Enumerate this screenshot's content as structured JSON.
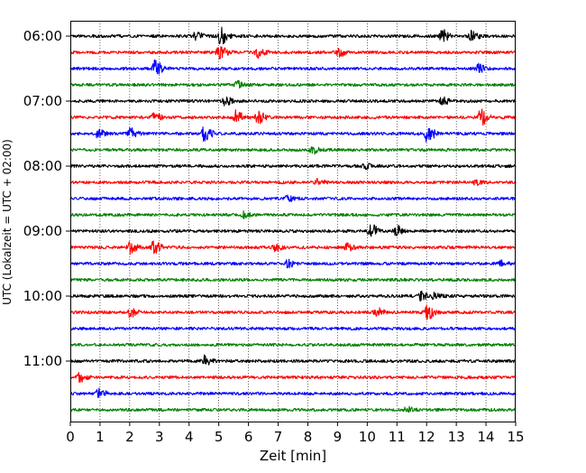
{
  "chart_data": {
    "type": "line",
    "title": "",
    "xlabel": "Zeit  [min]",
    "ylabel": "UTC (Lokalzeit = UTC + 02:00)",
    "xlim": [
      0,
      15
    ],
    "x_ticks": [
      "0",
      "1",
      "2",
      "3",
      "4",
      "5",
      "6",
      "7",
      "8",
      "9",
      "10",
      "11",
      "12",
      "13",
      "14",
      "15"
    ],
    "y_tick_labels": [
      "06:00",
      "07:00",
      "08:00",
      "09:00",
      "10:00",
      "11:00"
    ],
    "grid": "vertical dotted at each minute",
    "trace_interval_min": 15,
    "colors": [
      "#000000",
      "#ff0000",
      "#0000ff",
      "#008000"
    ],
    "traces": [
      {
        "start": "06:00",
        "color": "#000000",
        "events": [
          [
            4.2,
            0.45
          ],
          [
            5.05,
            1.0
          ],
          [
            12.5,
            0.8
          ],
          [
            13.5,
            0.6
          ]
        ]
      },
      {
        "start": "06:15",
        "color": "#ff0000",
        "events": [
          [
            5.0,
            1.0
          ],
          [
            6.3,
            0.6
          ],
          [
            9.0,
            0.5
          ]
        ]
      },
      {
        "start": "06:30",
        "color": "#0000ff",
        "events": [
          [
            2.85,
            1.0
          ],
          [
            13.7,
            0.5
          ]
        ]
      },
      {
        "start": "06:45",
        "color": "#008000",
        "events": [
          [
            5.6,
            0.4
          ]
        ]
      },
      {
        "start": "07:00",
        "color": "#000000",
        "events": [
          [
            5.2,
            0.5
          ],
          [
            12.5,
            0.4
          ]
        ]
      },
      {
        "start": "07:15",
        "color": "#ff0000",
        "events": [
          [
            2.8,
            0.5
          ],
          [
            5.55,
            0.8
          ],
          [
            6.3,
            0.7
          ],
          [
            13.8,
            1.0
          ]
        ]
      },
      {
        "start": "07:30",
        "color": "#0000ff",
        "events": [
          [
            0.9,
            0.5
          ],
          [
            2.0,
            0.6
          ],
          [
            4.5,
            1.0
          ],
          [
            12.0,
            1.0
          ]
        ]
      },
      {
        "start": "07:45",
        "color": "#008000",
        "events": [
          [
            8.1,
            0.5
          ]
        ]
      },
      {
        "start": "08:00",
        "color": "#000000",
        "events": [
          [
            9.9,
            0.3
          ]
        ]
      },
      {
        "start": "08:15",
        "color": "#ff0000",
        "events": [
          [
            8.3,
            0.4
          ],
          [
            13.6,
            0.3
          ]
        ]
      },
      {
        "start": "08:30",
        "color": "#0000ff",
        "events": [
          [
            7.3,
            0.3
          ]
        ]
      },
      {
        "start": "08:45",
        "color": "#008000",
        "events": [
          [
            5.8,
            0.4
          ]
        ]
      },
      {
        "start": "09:00",
        "color": "#000000",
        "events": [
          [
            10.1,
            0.8
          ],
          [
            10.95,
            0.7
          ]
        ]
      },
      {
        "start": "09:15",
        "color": "#ff0000",
        "events": [
          [
            2.0,
            0.7
          ],
          [
            2.8,
            0.7
          ],
          [
            6.9,
            0.4
          ],
          [
            9.3,
            0.4
          ]
        ]
      },
      {
        "start": "09:30",
        "color": "#0000ff",
        "events": [
          [
            7.3,
            0.4
          ],
          [
            14.5,
            0.3
          ]
        ]
      },
      {
        "start": "09:45",
        "color": "#008000",
        "events": []
      },
      {
        "start": "10:00",
        "color": "#000000",
        "events": [
          [
            11.8,
            0.5
          ],
          [
            12.2,
            0.4
          ]
        ]
      },
      {
        "start": "10:15",
        "color": "#ff0000",
        "events": [
          [
            2.0,
            0.5
          ],
          [
            10.3,
            0.5
          ],
          [
            12.0,
            0.8
          ]
        ]
      },
      {
        "start": "10:30",
        "color": "#0000ff",
        "events": []
      },
      {
        "start": "10:45",
        "color": "#008000",
        "events": []
      },
      {
        "start": "11:00",
        "color": "#000000",
        "events": [
          [
            4.5,
            0.6
          ]
        ]
      },
      {
        "start": "11:15",
        "color": "#ff0000",
        "events": [
          [
            0.3,
            0.5
          ]
        ]
      },
      {
        "start": "11:30",
        "color": "#0000ff",
        "events": [
          [
            0.95,
            0.5
          ]
        ]
      },
      {
        "start": "11:45",
        "color": "#008000",
        "events": [
          [
            11.3,
            0.3
          ]
        ]
      }
    ]
  }
}
